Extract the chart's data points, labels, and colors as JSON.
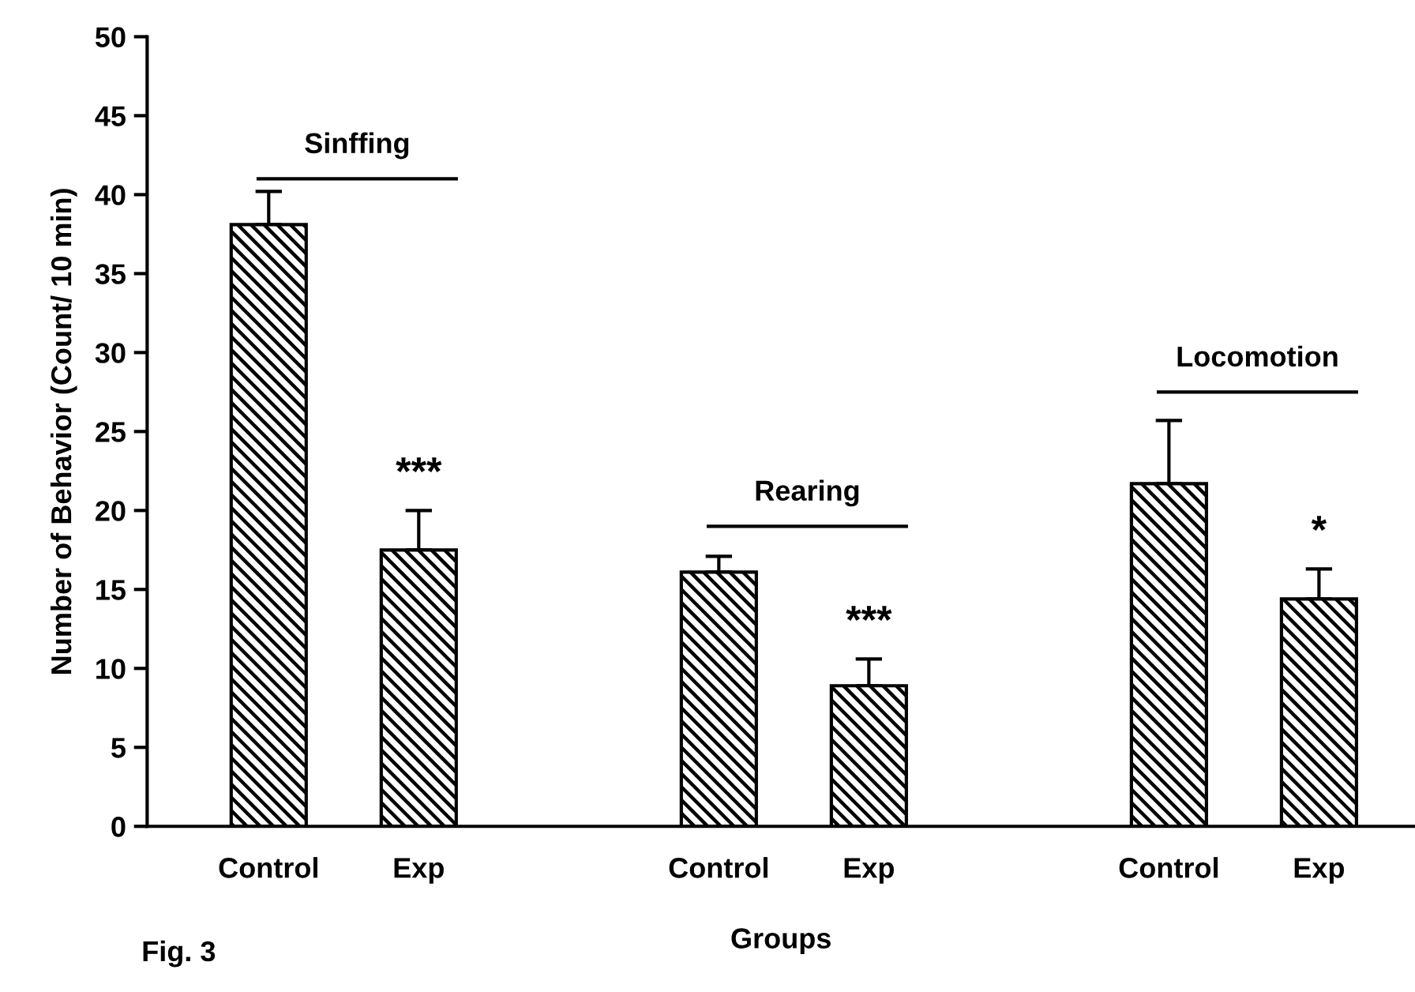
{
  "chart_data": {
    "type": "bar",
    "xlabel": "Groups",
    "ylabel": "Number of Behavior (Count/ 10 min)",
    "categories": [
      "Control",
      "Exp",
      null,
      "Control",
      "Exp",
      null,
      "Control",
      "Exp"
    ],
    "values": [
      38.1,
      17.5,
      null,
      16.1,
      8.9,
      null,
      21.7,
      14.4
    ],
    "errors": [
      [
        38.1,
        40.2
      ],
      [
        17.5,
        20.0
      ],
      null,
      [
        16.1,
        17.1
      ],
      [
        8.9,
        10.6
      ],
      null,
      [
        21.7,
        25.7
      ],
      [
        14.4,
        16.3
      ]
    ],
    "color": "#000000",
    "ylim": [
      0,
      50
    ],
    "yticks": [
      0,
      5,
      10,
      15,
      20,
      25,
      30,
      35,
      40,
      45,
      50
    ],
    "grid": false,
    "legend": false,
    "annotations": [
      "Sinffing",
      "Rearing",
      "Locomotion",
      {
        "text": "***",
        "y": 20.0
      },
      {
        "text": "***",
        "y": 10.6
      },
      {
        "text": "*",
        "y": 16.3
      },
      "Fig. 3"
    ]
  }
}
